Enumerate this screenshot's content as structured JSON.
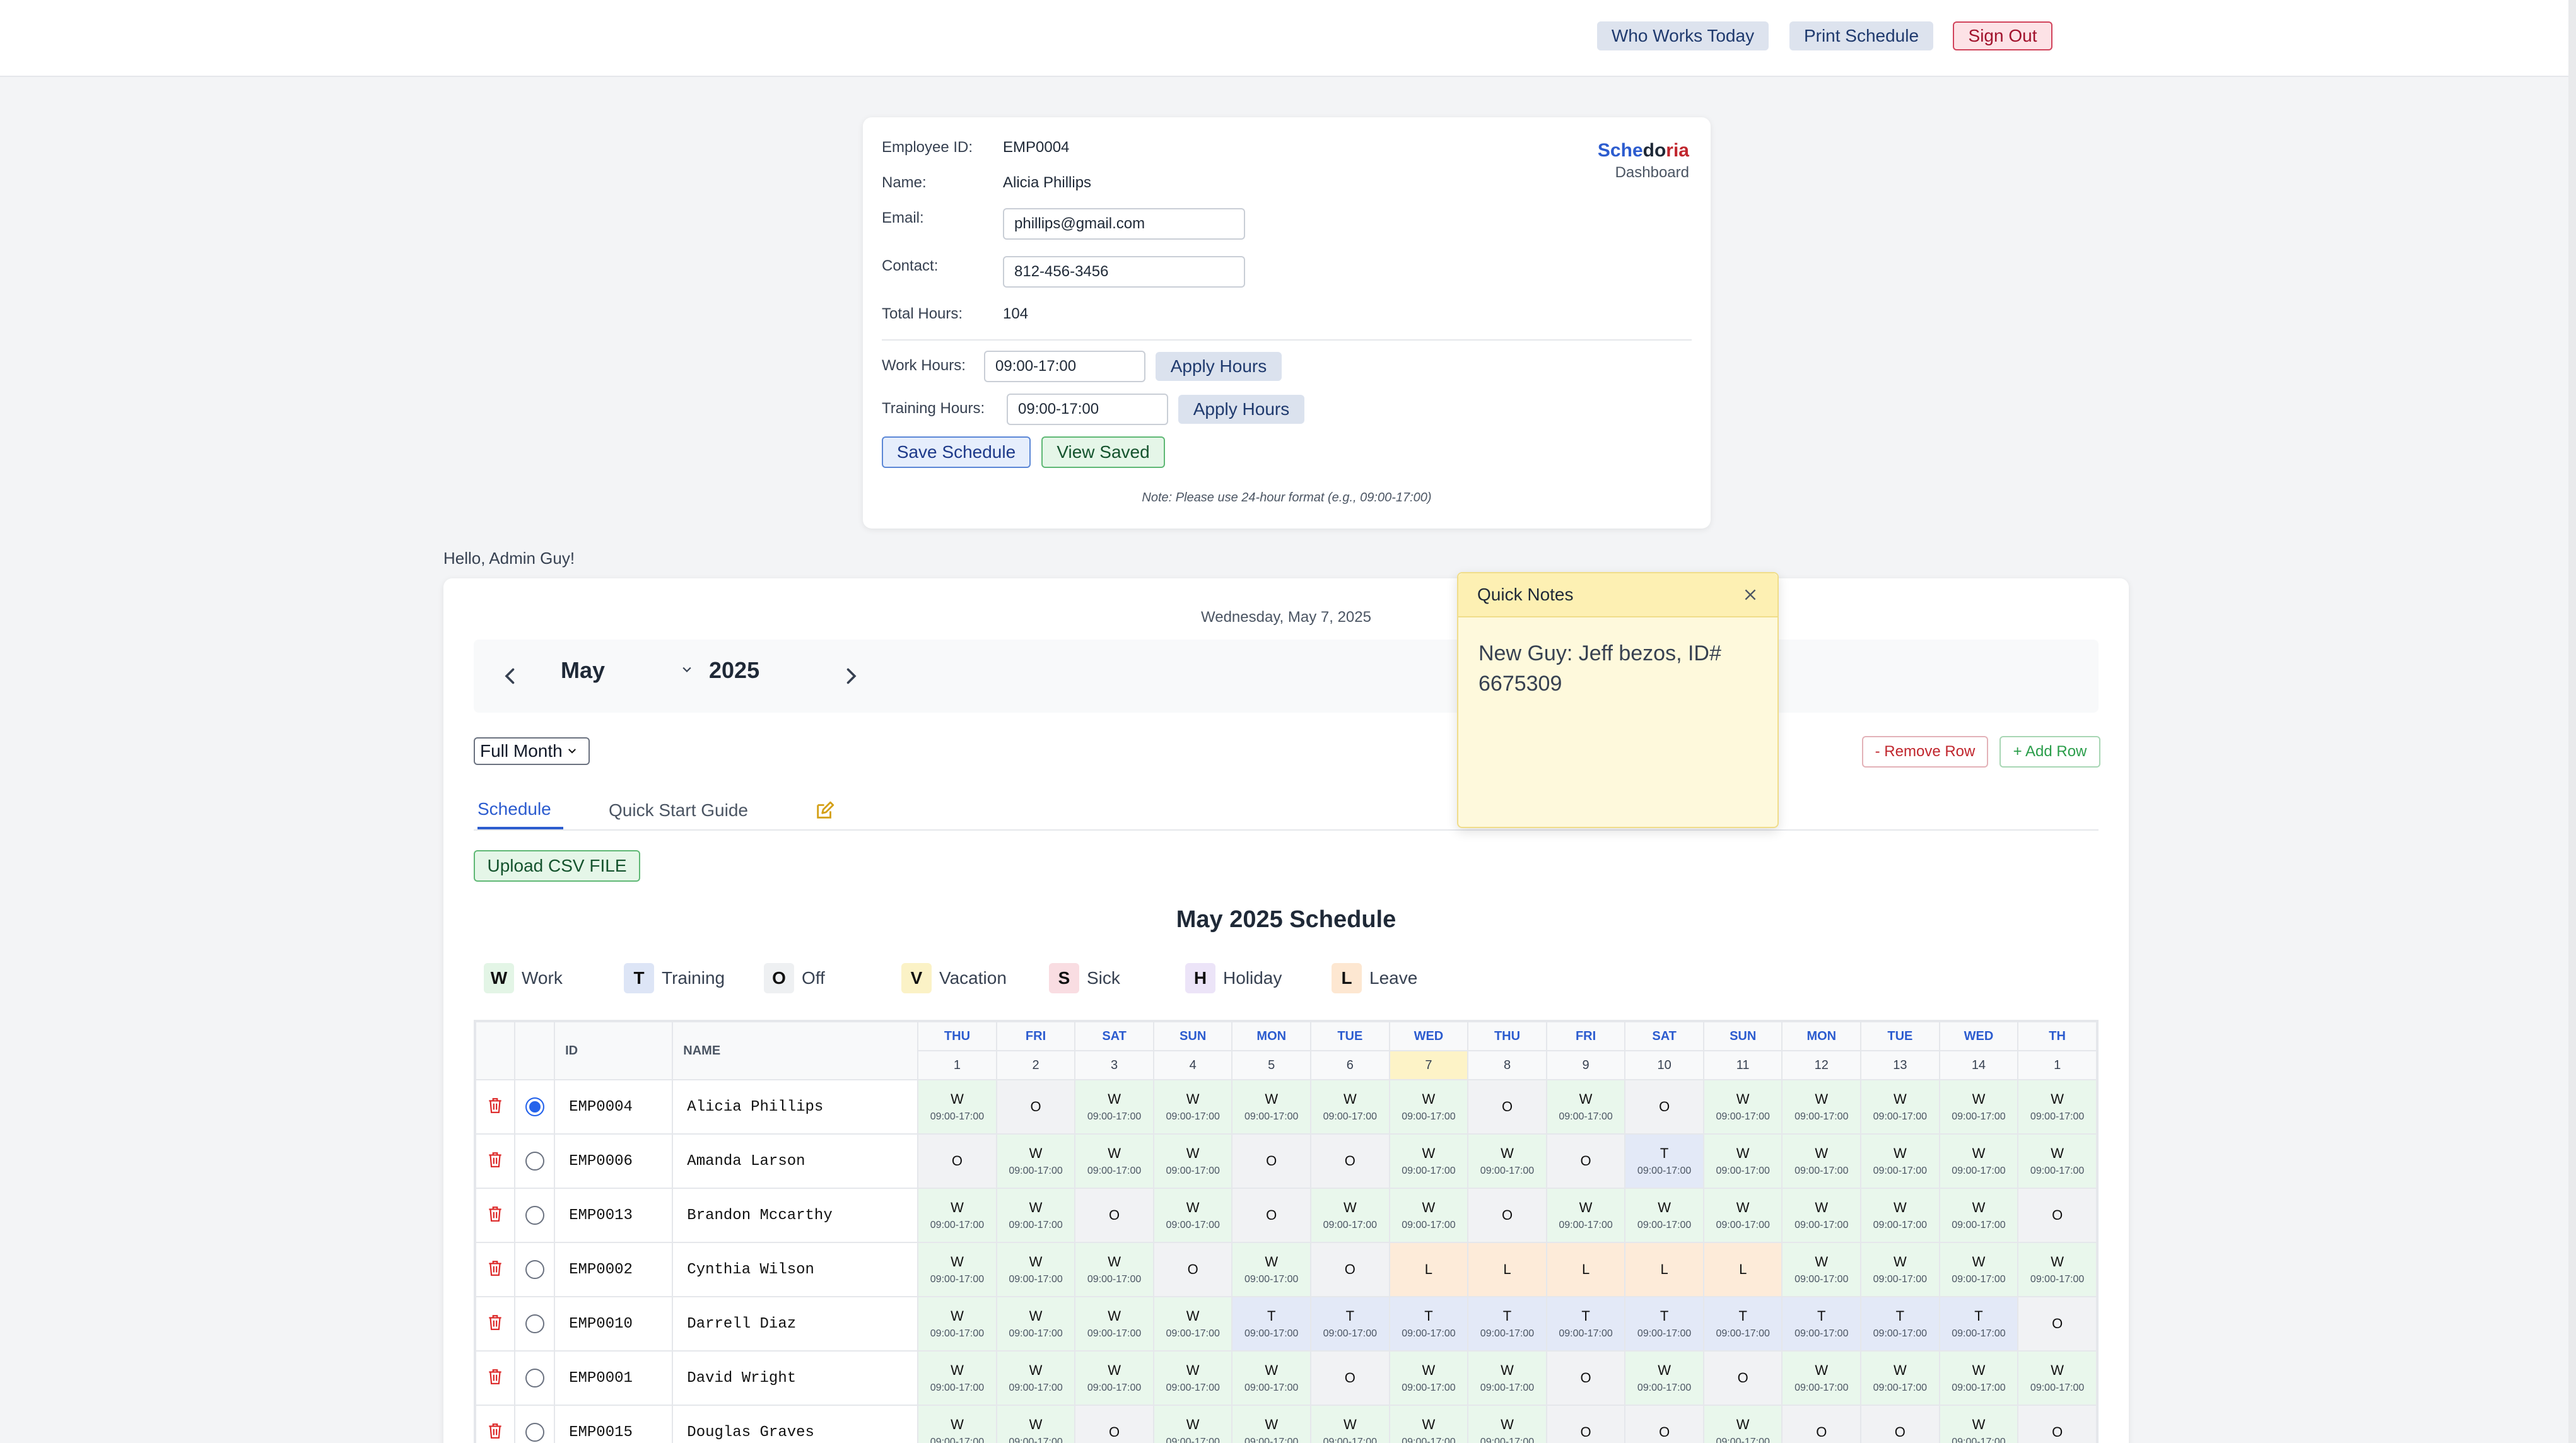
{
  "topbar": {
    "who_works_today": "Who Works Today",
    "print_schedule": "Print Schedule",
    "sign_out": "Sign Out"
  },
  "employee": {
    "id_label": "Employee ID:",
    "id": "EMP0004",
    "name_label": "Name:",
    "name": "Alicia Phillips",
    "email_label": "Email:",
    "email": "phillips@gmail.com",
    "contact_label": "Contact:",
    "contact": "812-456-3456",
    "total_hours_label": "Total Hours:",
    "total_hours": "104",
    "work_hours_label": "Work Hours:",
    "work_hours": "09:00-17:00",
    "training_hours_label": "Training Hours:",
    "training_hours": "09:00-17:00",
    "apply_label": "Apply Hours",
    "save_label": "Save Schedule",
    "view_saved_label": "View Saved",
    "note": "Note: Please use 24-hour format (e.g., 09:00-17:00)"
  },
  "brand": {
    "part1": "Sche",
    "part2": "do",
    "part3": "ria",
    "sub": "Dashboard",
    "color_blue": "#2c5ccf",
    "color_red": "#c0262d"
  },
  "greeting": "Hello, Admin Guy!",
  "calendar": {
    "date_line": "Wednesday, May 7, 2025",
    "month": "May",
    "year": "2025",
    "view": "Full Month",
    "remove_row": "- Remove Row",
    "add_row": "+ Add Row"
  },
  "tabs": {
    "schedule": "Schedule",
    "guide": "Quick Start Guide"
  },
  "upload_label": "Upload CSV FILE",
  "schedule_title": "May 2025 Schedule",
  "legend": [
    {
      "code": "W",
      "label": "Work",
      "color": "#e3f5e6"
    },
    {
      "code": "T",
      "label": "Training",
      "color": "#dde5f6"
    },
    {
      "code": "O",
      "label": "Off",
      "color": "#eef0f2"
    },
    {
      "code": "V",
      "label": "Vacation",
      "color": "#fbf2c6"
    },
    {
      "code": "S",
      "label": "Sick",
      "color": "#f9dde2"
    },
    {
      "code": "H",
      "label": "Holiday",
      "color": "#ece4f8"
    },
    {
      "code": "L",
      "label": "Leave",
      "color": "#fde7d1"
    }
  ],
  "table": {
    "col_id": "ID",
    "col_name": "NAME",
    "hours": "09:00-17:00",
    "days": [
      {
        "name": "THU",
        "num": "1"
      },
      {
        "name": "FRI",
        "num": "2"
      },
      {
        "name": "SAT",
        "num": "3"
      },
      {
        "name": "SUN",
        "num": "4"
      },
      {
        "name": "MON",
        "num": "5"
      },
      {
        "name": "TUE",
        "num": "6"
      },
      {
        "name": "WED",
        "num": "7"
      },
      {
        "name": "THU",
        "num": "8"
      },
      {
        "name": "FRI",
        "num": "9"
      },
      {
        "name": "SAT",
        "num": "10"
      },
      {
        "name": "SUN",
        "num": "11"
      },
      {
        "name": "MON",
        "num": "12"
      },
      {
        "name": "TUE",
        "num": "13"
      },
      {
        "name": "WED",
        "num": "14"
      },
      {
        "name": "TH",
        "num": "1"
      }
    ],
    "today_index": 6,
    "rows": [
      {
        "id": "EMP0004",
        "name": "Alicia Phillips",
        "selected": true,
        "codes": [
          "W",
          "O",
          "W",
          "W",
          "W",
          "W",
          "W",
          "O",
          "W",
          "O",
          "W",
          "W",
          "W",
          "W",
          "W"
        ]
      },
      {
        "id": "EMP0006",
        "name": "Amanda Larson",
        "selected": false,
        "codes": [
          "O",
          "W",
          "W",
          "W",
          "O",
          "O",
          "W",
          "W",
          "O",
          "T",
          "W",
          "W",
          "W",
          "W",
          "W"
        ]
      },
      {
        "id": "EMP0013",
        "name": "Brandon Mccarthy",
        "selected": false,
        "codes": [
          "W",
          "W",
          "O",
          "W",
          "O",
          "W",
          "W",
          "O",
          "W",
          "W",
          "W",
          "W",
          "W",
          "W",
          "O"
        ]
      },
      {
        "id": "EMP0002",
        "name": "Cynthia Wilson",
        "selected": false,
        "codes": [
          "W",
          "W",
          "W",
          "O",
          "W",
          "O",
          "L",
          "L",
          "L",
          "L",
          "L",
          "W",
          "W",
          "W",
          "W"
        ]
      },
      {
        "id": "EMP0010",
        "name": "Darrell Diaz",
        "selected": false,
        "codes": [
          "W",
          "W",
          "W",
          "W",
          "T",
          "T",
          "T",
          "T",
          "T",
          "T",
          "T",
          "T",
          "T",
          "T",
          "O"
        ]
      },
      {
        "id": "EMP0001",
        "name": "David Wright",
        "selected": false,
        "codes": [
          "W",
          "W",
          "W",
          "W",
          "W",
          "O",
          "W",
          "W",
          "O",
          "W",
          "O",
          "W",
          "W",
          "W",
          "W"
        ]
      },
      {
        "id": "EMP0015",
        "name": "Douglas Graves",
        "selected": false,
        "codes": [
          "W",
          "W",
          "O",
          "W",
          "W",
          "W",
          "W",
          "W",
          "O",
          "O",
          "W",
          "O",
          "O",
          "W",
          "O"
        ]
      }
    ]
  },
  "quick_notes": {
    "title": "Quick Notes",
    "body": "New Guy: Jeff bezos, ID# 6675309"
  }
}
